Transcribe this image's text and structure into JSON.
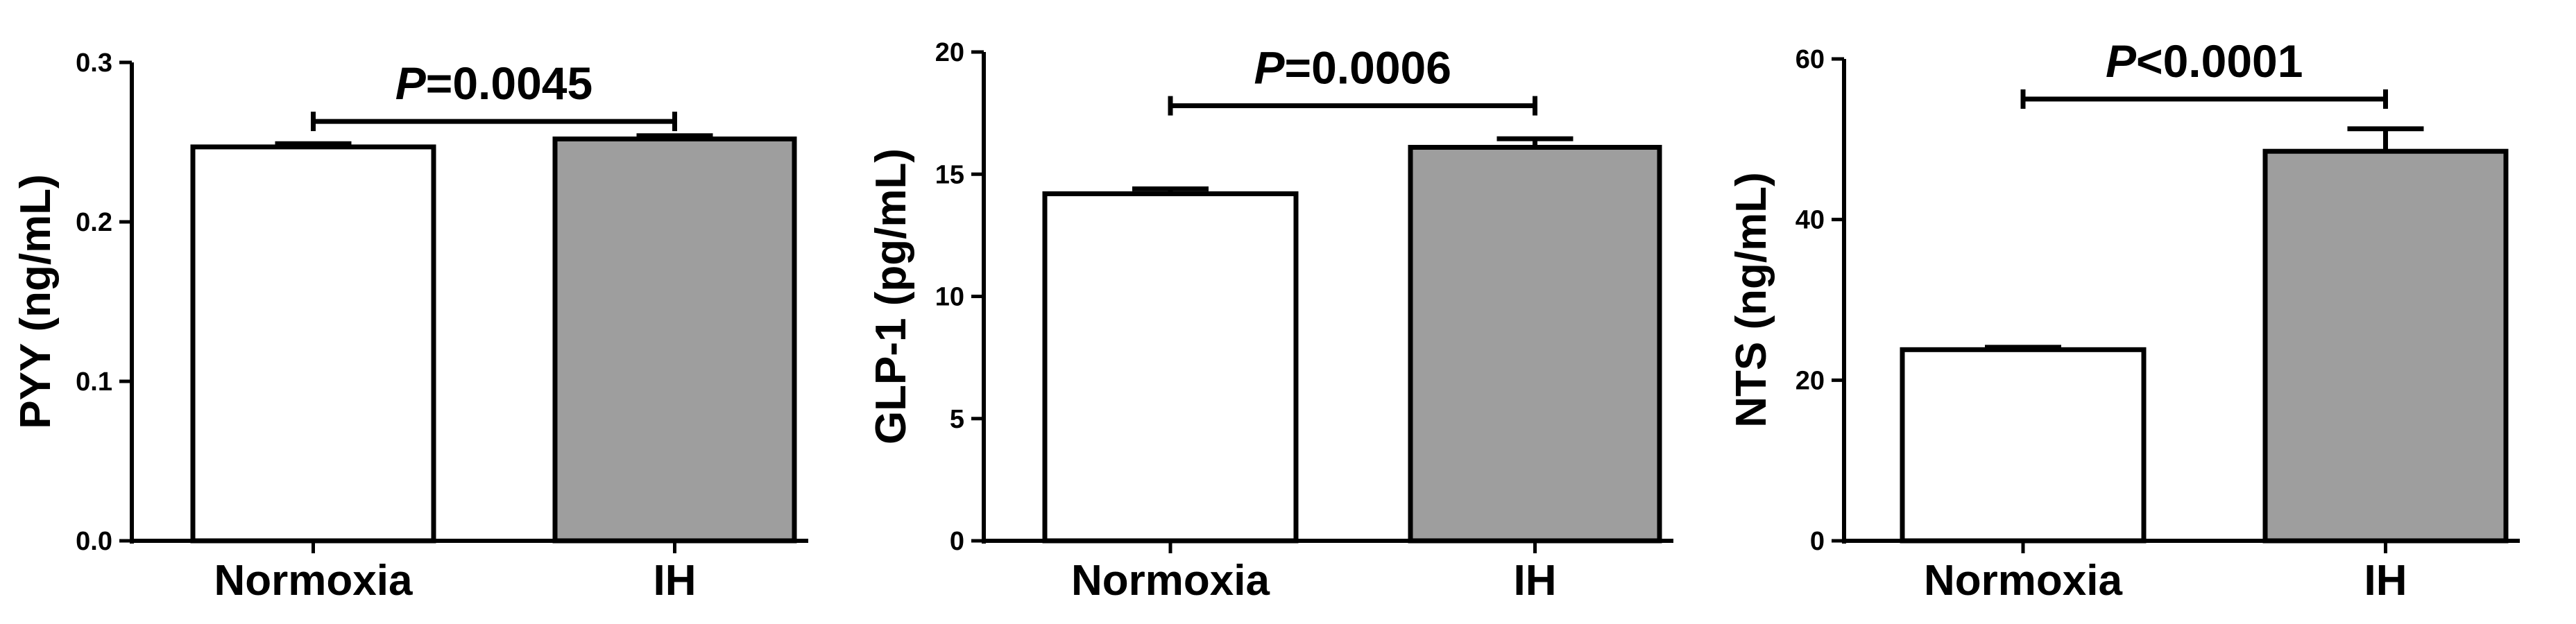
{
  "figure": {
    "panels_count": 3
  },
  "chart_data": [
    {
      "type": "bar",
      "categories": [
        "Normoxia",
        "IH"
      ],
      "values": [
        0.247,
        0.252
      ],
      "errors": [
        0.002,
        0.002
      ],
      "title": "",
      "xlabel": "",
      "ylabel": "PYY (ng/mL)",
      "ylim": [
        0,
        0.3
      ],
      "yticks": [
        0,
        0.1,
        0.2,
        0.3
      ],
      "ytick_labels": [
        "0.0",
        "0.1",
        "0.2",
        "0.3"
      ],
      "bar_colors": [
        "#ffffff",
        "#9e9e9e"
      ],
      "significance": {
        "from": 0,
        "to": 1,
        "label_italic": "P",
        "label_rest": "=0.0045",
        "y": 0.263
      },
      "grid": false
    },
    {
      "type": "bar",
      "categories": [
        "Normoxia",
        "IH"
      ],
      "values": [
        14.2,
        16.1
      ],
      "errors": [
        0.2,
        0.35
      ],
      "title": "",
      "xlabel": "",
      "ylabel": "GLP-1 (pg/mL)",
      "ylim": [
        0,
        20
      ],
      "yticks": [
        0,
        5,
        10,
        15,
        20
      ],
      "ytick_labels": [
        "0",
        "5",
        "10",
        "15",
        "20"
      ],
      "bar_colors": [
        "#ffffff",
        "#9e9e9e"
      ],
      "significance": {
        "from": 0,
        "to": 1,
        "label_italic": "P",
        "label_rest": "=0.0006",
        "y": 17.8
      },
      "grid": false
    },
    {
      "type": "bar",
      "categories": [
        "Normoxia",
        "IH"
      ],
      "values": [
        23.8,
        48.5
      ],
      "errors": [
        0.3,
        2.8
      ],
      "title": "",
      "xlabel": "",
      "ylabel": "NTS (ng/mL)",
      "ylim": [
        0,
        60
      ],
      "yticks": [
        0,
        20,
        40,
        60
      ],
      "ytick_labels": [
        "0",
        "20",
        "40",
        "60"
      ],
      "bar_colors": [
        "#ffffff",
        "#9e9e9e"
      ],
      "significance": {
        "from": 0,
        "to": 1,
        "label_italic": "P",
        "label_rest": "<0.0001",
        "y": 55
      },
      "grid": false
    }
  ]
}
